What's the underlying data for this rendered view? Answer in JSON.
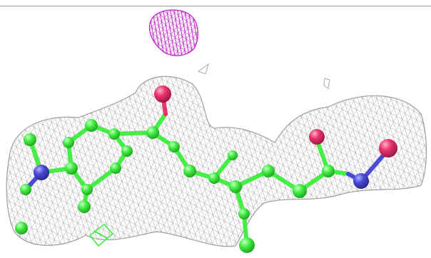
{
  "scene": {
    "kind": "molecular-structure-with-electron-density-mesh",
    "colors": {
      "background": "#ffffff",
      "density_mesh": "#a9a9a9",
      "difference_density": "#c020c8",
      "carbon": "#44ee44",
      "oxygen": "#e8336b",
      "nitrogen": "#4a4ad8"
    },
    "elements_shown": [
      "carbon",
      "oxygen",
      "nitrogen"
    ]
  }
}
